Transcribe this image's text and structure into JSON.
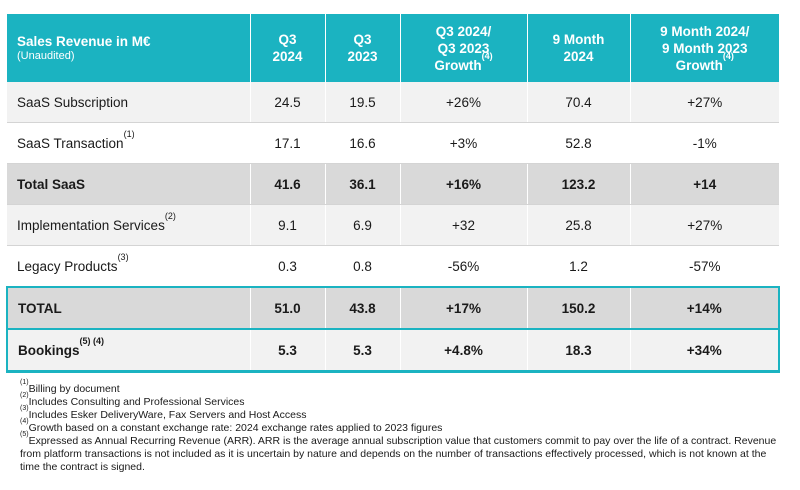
{
  "header": {
    "col0_main": "Sales Revenue in M€",
    "col0_sub": "(Unaudited)",
    "col1_l1": "Q3",
    "col1_l2": "2024",
    "col2_l1": "Q3",
    "col2_l2": "2023",
    "col3_l1": "Q3 2024/",
    "col3_l2": "Q3 2023",
    "col3_l3": "Growth",
    "col3_sup": "(4)",
    "col4_l1": "9 Month",
    "col4_l2": "2024",
    "col5_l1": "9 Month 2024/",
    "col5_l2": "9 Month 2023",
    "col5_l3": "Growth",
    "col5_sup": "(4)"
  },
  "rows": [
    {
      "label": "SaaS Subscription",
      "sup": "",
      "v1": "24.5",
      "v2": "19.5",
      "v3": "+26%",
      "v4": "70.4",
      "v5": "+27%"
    },
    {
      "label": "SaaS Transaction",
      "sup": "(1)",
      "v1": "17.1",
      "v2": "16.6",
      "v3": "+3%",
      "v4": "52.8",
      "v5": "-1%"
    },
    {
      "label": "Total SaaS",
      "sup": "",
      "v1": "41.6",
      "v2": "36.1",
      "v3": "+16%",
      "v4": "123.2",
      "v5": "+14"
    },
    {
      "label": "Implementation Services",
      "sup": "(2)",
      "v1": "9.1",
      "v2": "6.9",
      "v3": "+32",
      "v4": "25.8",
      "v5": "+27%"
    },
    {
      "label": "Legacy Products",
      "sup": "(3)",
      "v1": "0.3",
      "v2": "0.8",
      "v3": "-56%",
      "v4": "1.2",
      "v5": "-57%"
    },
    {
      "label": "TOTAL",
      "sup": "",
      "v1": "51.0",
      "v2": "43.8",
      "v3": "+17%",
      "v4": "150.2",
      "v5": "+14%"
    },
    {
      "label": "Bookings",
      "sup": "(5) (4)",
      "v1": "5.3",
      "v2": "5.3",
      "v3": "+4.8%",
      "v4": "18.3",
      "v5": "+34%"
    }
  ],
  "footnotes": [
    {
      "sup": "(1)",
      "text": "Billing by document"
    },
    {
      "sup": "(2)",
      "text": "Includes Consulting and Professional Services"
    },
    {
      "sup": "(3)",
      "text": "Includes Esker DeliveryWare, Fax Servers and Host Access"
    },
    {
      "sup": "(4)",
      "text": "Growth based on a constant exchange rate: 2024 exchange rates applied to 2023 figures"
    },
    {
      "sup": "(5)",
      "text": "Expressed as Annual Recurring Revenue (ARR). ARR is the average annual subscription value that customers commit to pay over the life of a contract. Revenue from platform transactions is not included as it is uncertain by nature and depends on the number of transactions effectively processed, which is not known at the time the contract is signed."
    }
  ]
}
